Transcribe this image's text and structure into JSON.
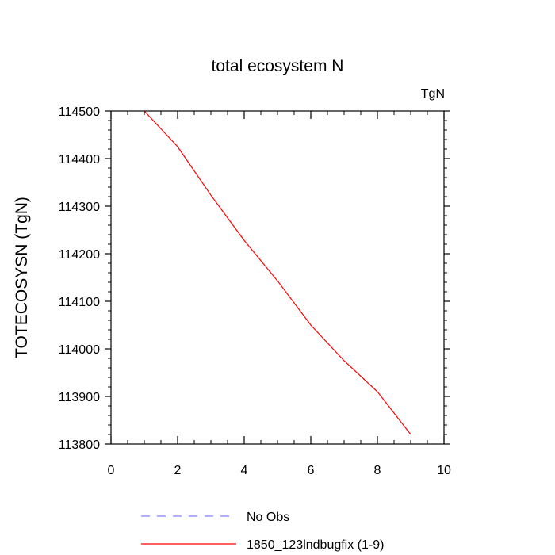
{
  "chart_data": {
    "type": "line",
    "title": "total ecosystem N",
    "units": "TgN",
    "xlabel": "",
    "ylabel": "TOTECOSYSN  (TgN)",
    "xlim": [
      0,
      10
    ],
    "ylim": [
      113800,
      114500
    ],
    "xticks": [
      "0",
      "2",
      "4",
      "6",
      "8",
      "10"
    ],
    "yticks": [
      "113800",
      "113900",
      "114000",
      "114100",
      "114200",
      "114300",
      "114400",
      "114500"
    ],
    "grid": false,
    "legend_position": "bottom",
    "series": [
      {
        "name": "1850_123lndbugfix (1-9)",
        "color": "#ff0000",
        "style": "solid",
        "x": [
          1,
          2,
          3,
          4,
          5,
          6,
          7,
          8,
          9
        ],
        "y": [
          114500,
          114425,
          114323,
          114228,
          114143,
          114050,
          113975,
          113910,
          113820
        ]
      }
    ],
    "legend": [
      {
        "label": "No Obs",
        "color": "#8080ff",
        "style": "dashed"
      },
      {
        "label": "1850_123lndbugfix (1-9)",
        "color": "#ff0000",
        "style": "solid"
      }
    ]
  }
}
